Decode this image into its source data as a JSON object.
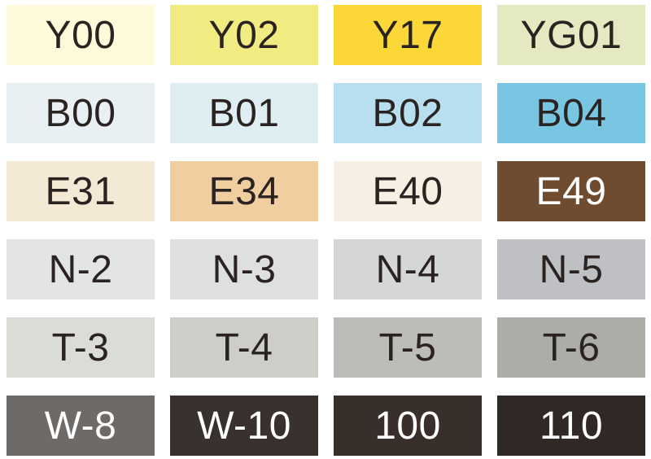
{
  "page": {
    "background": "#FFFFFF",
    "dark_text": "#2A2321",
    "light_text": "#FFFFFF"
  },
  "palette": {
    "rows": [
      {
        "cells": [
          {
            "label": "Y00",
            "bg": "#FFFBDA",
            "fg": "#2A2321"
          },
          {
            "label": "Y02",
            "bg": "#F1EC82",
            "fg": "#2A2321"
          },
          {
            "label": "Y17",
            "bg": "#FBD838",
            "fg": "#2A2321"
          },
          {
            "label": "YG01",
            "bg": "#E5E9C2",
            "fg": "#2A2321"
          }
        ]
      },
      {
        "cells": [
          {
            "label": "B00",
            "bg": "#E9F0F3",
            "fg": "#2A2321"
          },
          {
            "label": "B01",
            "bg": "#DFEEF3",
            "fg": "#2A2321"
          },
          {
            "label": "B02",
            "bg": "#B8DFEF",
            "fg": "#2A2321"
          },
          {
            "label": "B04",
            "bg": "#79C6E2",
            "fg": "#2A2321"
          }
        ]
      },
      {
        "cells": [
          {
            "label": "E31",
            "bg": "#F4E9D4",
            "fg": "#2A2321"
          },
          {
            "label": "E34",
            "bg": "#F1CEA0",
            "fg": "#2A2321"
          },
          {
            "label": "E40",
            "bg": "#F5EFE4",
            "fg": "#2A2321"
          },
          {
            "label": "E49",
            "bg": "#6F4B30",
            "fg": "#FFFFFF"
          }
        ]
      },
      {
        "cells": [
          {
            "label": "N-2",
            "bg": "#E3E4E6",
            "fg": "#2A2321"
          },
          {
            "label": "N-3",
            "bg": "#DEDFE1",
            "fg": "#2A2321"
          },
          {
            "label": "N-4",
            "bg": "#D5D6D8",
            "fg": "#2A2321"
          },
          {
            "label": "N-5",
            "bg": "#BFC0C4",
            "fg": "#2A2321"
          }
        ]
      },
      {
        "cells": [
          {
            "label": "T-3",
            "bg": "#DCDCD7",
            "fg": "#2A2321"
          },
          {
            "label": "T-4",
            "bg": "#CECEC9",
            "fg": "#2A2321"
          },
          {
            "label": "T-5",
            "bg": "#BCBDB8",
            "fg": "#2A2321"
          },
          {
            "label": "T-6",
            "bg": "#ADADA7",
            "fg": "#2A2321"
          }
        ]
      },
      {
        "cells": [
          {
            "label": "W-8",
            "bg": "#6E6A67",
            "fg": "#FFFFFF"
          },
          {
            "label": "W-10",
            "bg": "#38312D",
            "fg": "#FFFFFF"
          },
          {
            "label": "100",
            "bg": "#392F2A",
            "fg": "#FFFFFF"
          },
          {
            "label": "110",
            "bg": "#2F2824",
            "fg": "#FFFFFF"
          }
        ]
      }
    ]
  }
}
